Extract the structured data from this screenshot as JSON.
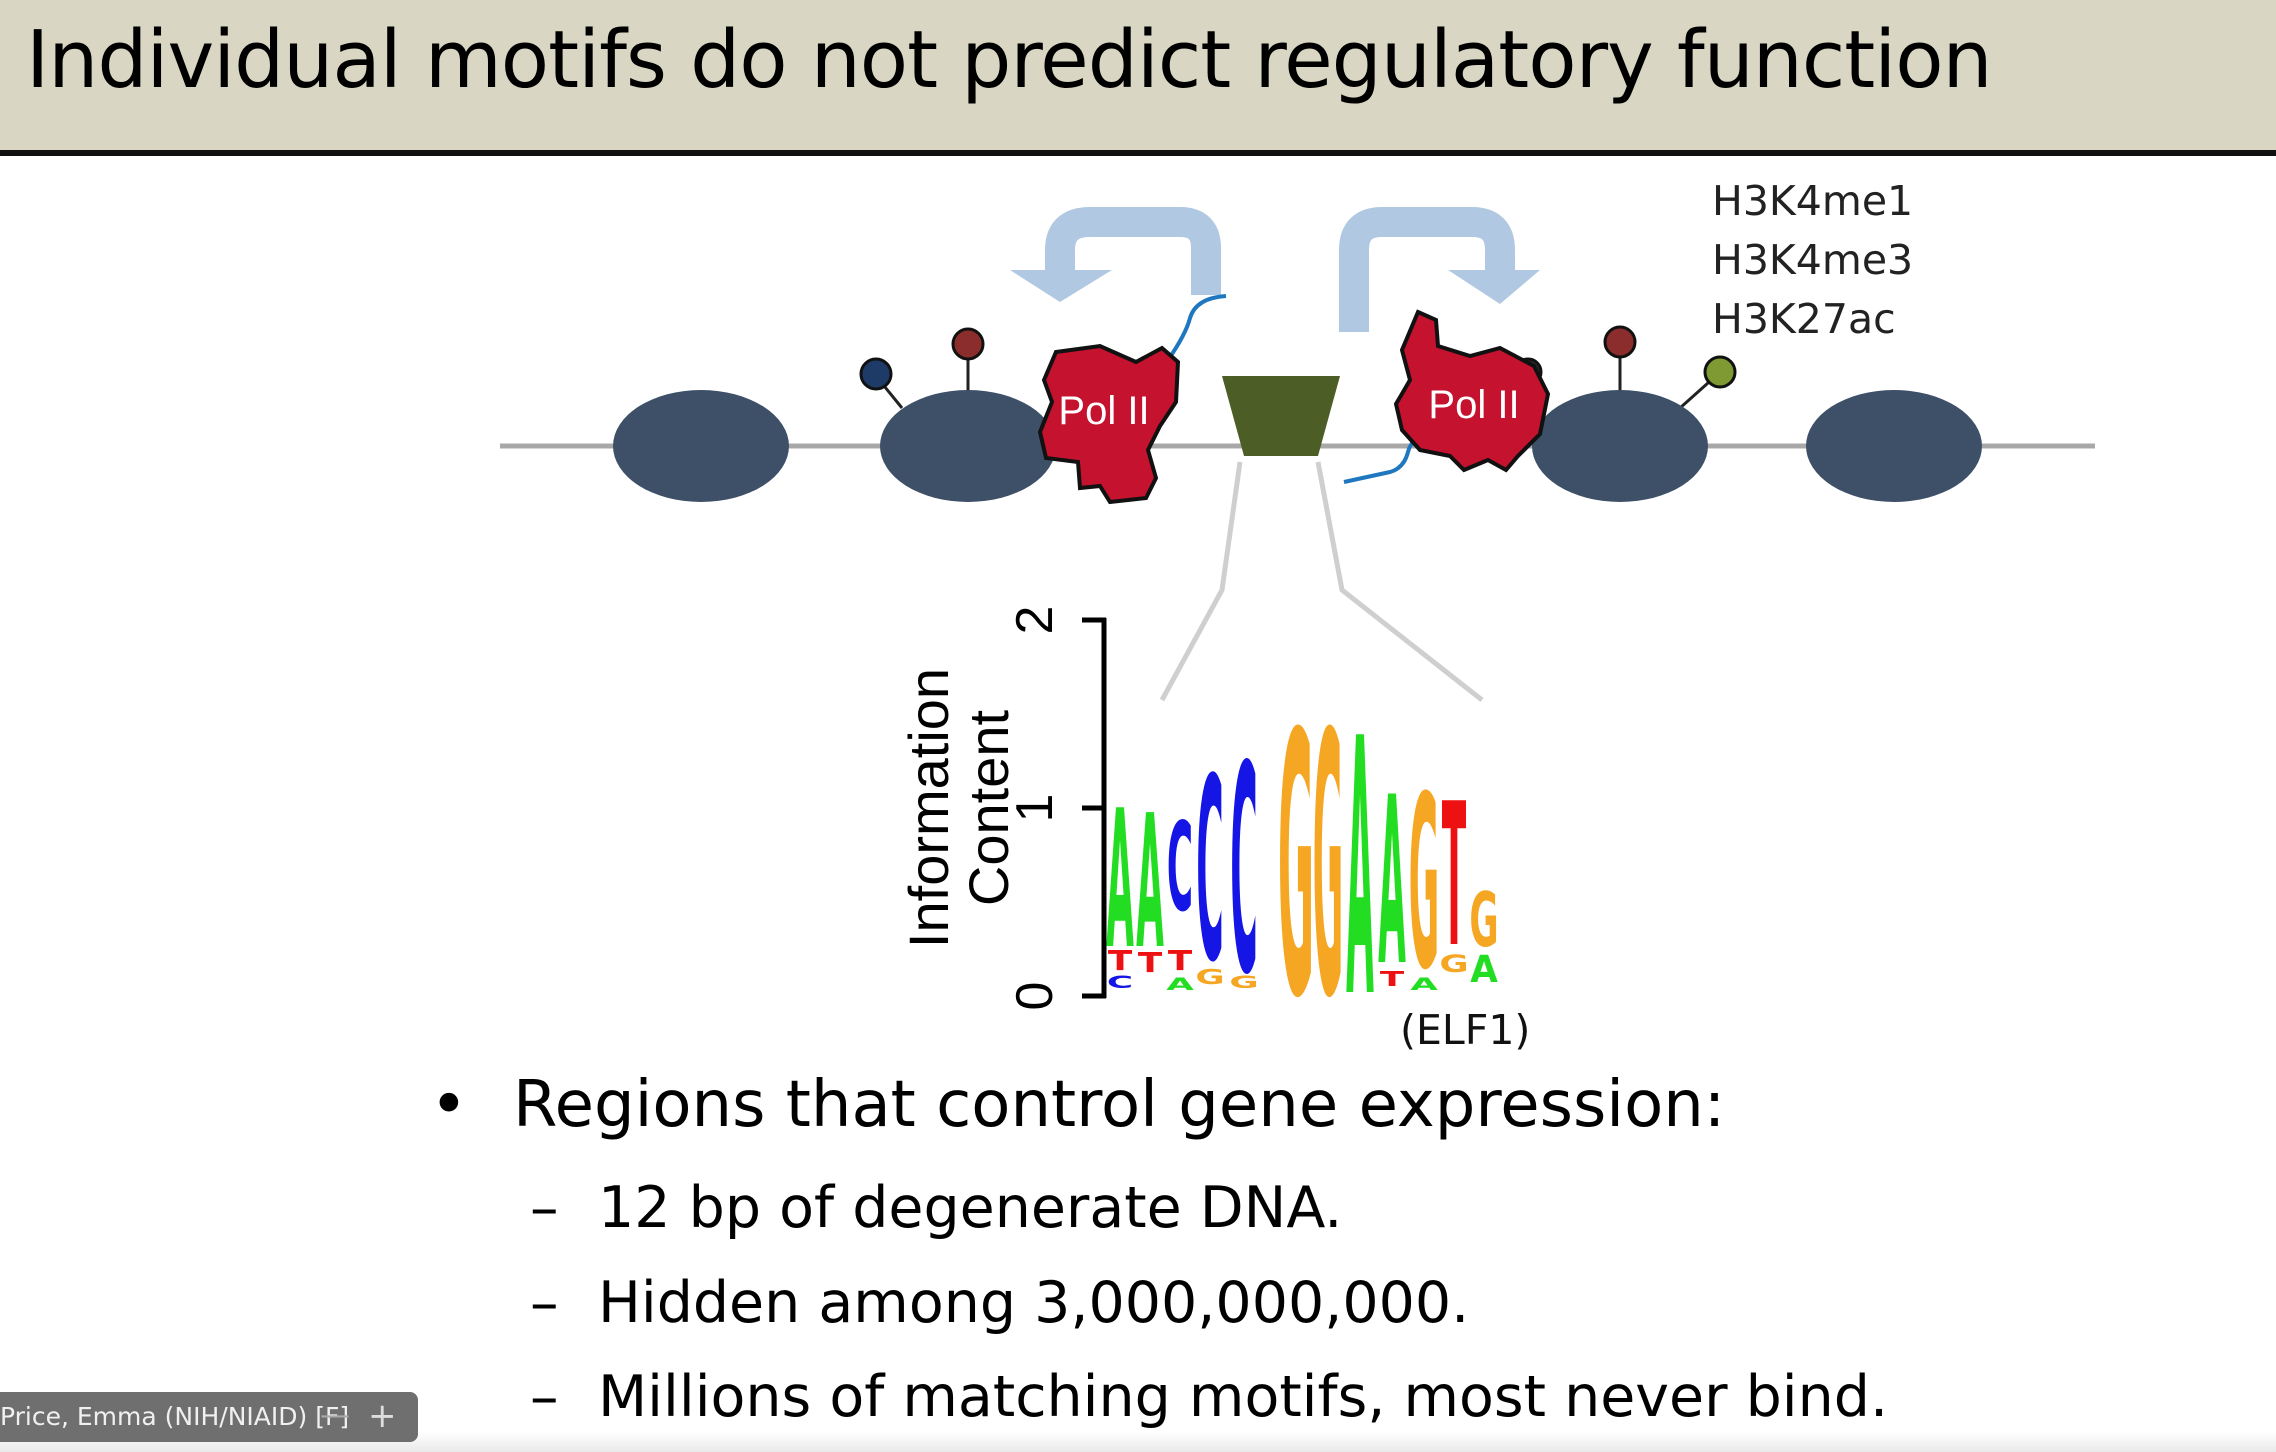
{
  "slide": {
    "title": "Individual motifs do not predict regulatory function"
  },
  "diagram": {
    "histone_marks": [
      "H3K4me1",
      "H3K4me3",
      "H3K27ac"
    ],
    "pol_label_left": "Pol II",
    "pol_label_right": "Pol II",
    "motif_label": "(ELF1)",
    "logo_ylabel_line1": "Information",
    "logo_ylabel_line2": "Content",
    "logo_ticks": [
      "0",
      "1",
      "2"
    ],
    "colors": {
      "nucleosome": "#3d5068",
      "pol": "#c4122f",
      "tf": "#4c5d25",
      "arrow": "#b0c8e2",
      "rna": "#1f77c0",
      "A": "#22dd22",
      "C": "#1515e6",
      "G": "#f5a623",
      "T": "#ee1111"
    }
  },
  "bullet": {
    "marker": "•",
    "text": "Regions that control gene expression:"
  },
  "subbullets": [
    {
      "dash": "–",
      "text": "12 bp of degenerate DNA."
    },
    {
      "dash": "–",
      "text": "Hidden among 3,000,000,000."
    },
    {
      "dash": "–",
      "text": "Millions of matching motifs, most never bind."
    }
  ],
  "zoom": {
    "participant": "Price, Emma (NIH/NIAID) [F]",
    "minus": "—",
    "plus": "+"
  }
}
